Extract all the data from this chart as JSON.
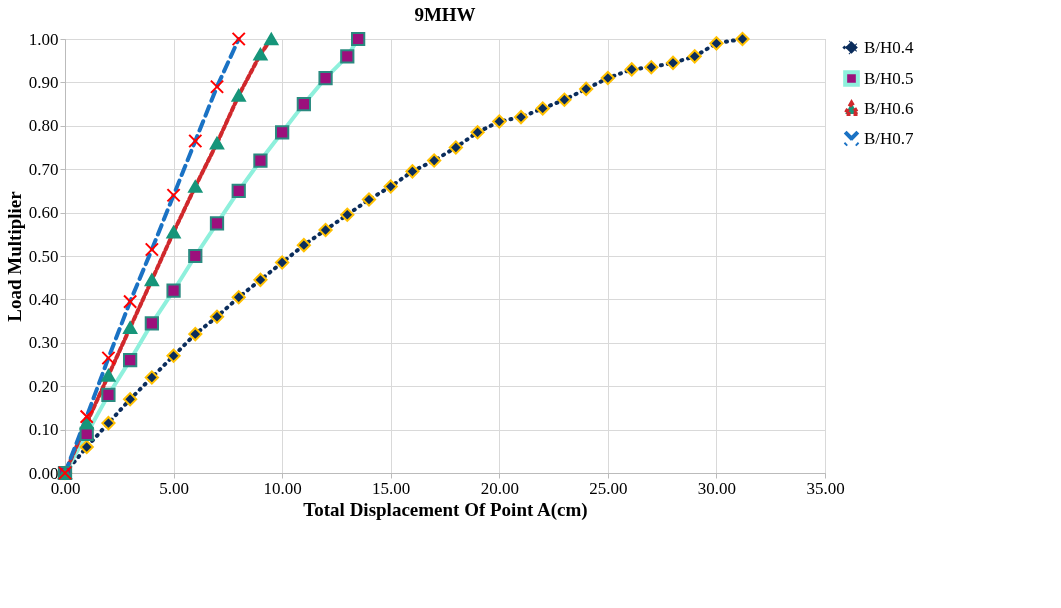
{
  "chart_data": {
    "type": "line",
    "title": "9MHW",
    "xlabel": "Total  Displacement Of  Point A(cm)",
    "ylabel": "Load Multiplier",
    "xlim": [
      0,
      35
    ],
    "xticks": [
      {
        "value": 0,
        "label": "0.00"
      },
      {
        "value": 5,
        "label": "5.00"
      },
      {
        "value": 10,
        "label": "10.00"
      },
      {
        "value": 15,
        "label": "15.00"
      },
      {
        "value": 20,
        "label": "20.00"
      },
      {
        "value": 25,
        "label": "25.00"
      },
      {
        "value": 30,
        "label": "30.00"
      },
      {
        "value": 35,
        "label": "35.00"
      }
    ],
    "ylim": [
      0,
      1
    ],
    "yticks": [
      {
        "value": 0,
        "label": "0.00"
      },
      {
        "value": 0.1,
        "label": "0.10"
      },
      {
        "value": 0.2,
        "label": "0.20"
      },
      {
        "value": 0.3,
        "label": "0.30"
      },
      {
        "value": 0.4,
        "label": "0.40"
      },
      {
        "value": 0.5,
        "label": "0.50"
      },
      {
        "value": 0.6,
        "label": "0.60"
      },
      {
        "value": 0.7,
        "label": "0.70"
      },
      {
        "value": 0.8,
        "label": "0.80"
      },
      {
        "value": 0.9,
        "label": "0.90"
      },
      {
        "value": 1.0,
        "label": "1.00"
      }
    ],
    "grid": true,
    "legend": "right",
    "series": [
      {
        "name": "B/H0.4",
        "color": "#0b2d5c",
        "marker": "diamond",
        "line_style": "dotted",
        "x": [
          0,
          1,
          2,
          3,
          4,
          5,
          6,
          7,
          8,
          9,
          10,
          11,
          12,
          13,
          14,
          15,
          16,
          17,
          18,
          19,
          20,
          21,
          22,
          23,
          24,
          25,
          26.1,
          27,
          28,
          29,
          30,
          31.2
        ],
        "values": [
          0,
          0.06,
          0.115,
          0.17,
          0.22,
          0.27,
          0.32,
          0.36,
          0.405,
          0.445,
          0.485,
          0.525,
          0.56,
          0.595,
          0.63,
          0.66,
          0.695,
          0.72,
          0.75,
          0.785,
          0.81,
          0.82,
          0.84,
          0.86,
          0.885,
          0.91,
          0.93,
          0.935,
          0.945,
          0.96,
          0.99,
          1.0
        ]
      },
      {
        "name": "B/H0.5",
        "color": "#8ef0dc",
        "marker": "square",
        "line_style": "solid",
        "x": [
          0,
          1,
          2,
          3,
          4,
          5,
          6,
          7,
          8,
          9,
          10,
          11,
          12,
          13,
          13.5
        ],
        "values": [
          0,
          0.09,
          0.18,
          0.26,
          0.345,
          0.42,
          0.5,
          0.575,
          0.65,
          0.72,
          0.785,
          0.85,
          0.91,
          0.96,
          1.0
        ]
      },
      {
        "name": "B/H0.6",
        "color": "#d0282c",
        "marker": "triangle",
        "line_style": "dashed",
        "x": [
          0,
          1,
          2,
          3,
          4,
          5,
          6,
          7,
          8,
          9,
          9.5
        ],
        "values": [
          0,
          0.115,
          0.225,
          0.335,
          0.445,
          0.555,
          0.66,
          0.76,
          0.87,
          0.965,
          1.0
        ]
      },
      {
        "name": "B/H0.7",
        "color": "#1a72c4",
        "marker": "cross",
        "line_style": "dashed",
        "x": [
          0,
          1,
          2,
          3,
          4,
          5,
          6,
          7,
          8
        ],
        "values": [
          0,
          0.13,
          0.265,
          0.395,
          0.515,
          0.64,
          0.765,
          0.89,
          1.0
        ]
      }
    ]
  }
}
